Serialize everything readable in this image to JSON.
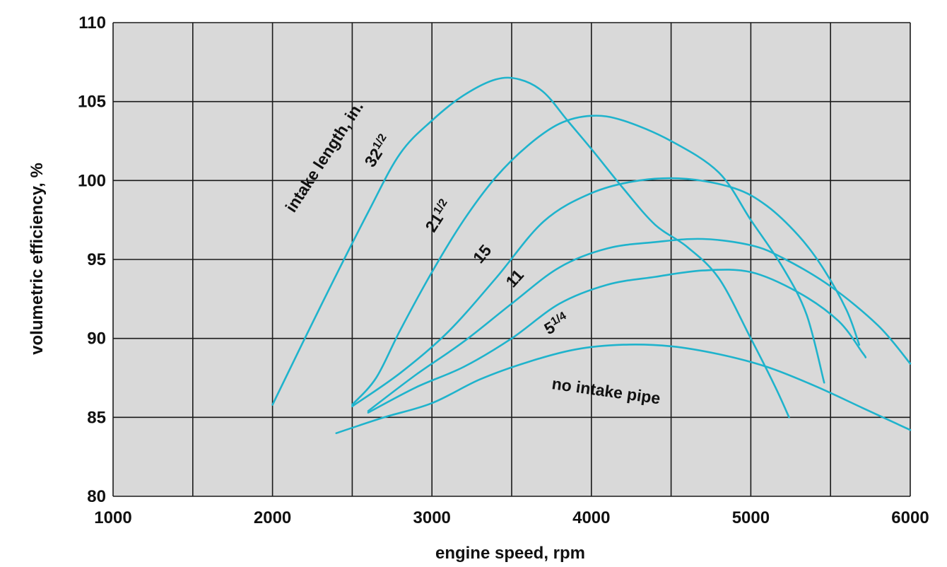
{
  "chart_data": {
    "type": "line",
    "title": "",
    "xlabel": "engine speed, rpm",
    "ylabel": "volumetric efficiency, %",
    "xlim": [
      1000,
      6000
    ],
    "ylim": [
      80,
      110
    ],
    "x_ticks": [
      1000,
      2000,
      3000,
      4000,
      5000,
      6000
    ],
    "y_ticks": [
      80,
      85,
      90,
      95,
      100,
      105,
      110
    ],
    "x_gridlines": [
      1000,
      1500,
      2000,
      2500,
      3000,
      3500,
      4000,
      4500,
      5000,
      5500,
      6000
    ],
    "y_gridlines": [
      80,
      85,
      90,
      95,
      100,
      105,
      110
    ],
    "grid": true,
    "plot_background": "#d9d9d9",
    "line_color": "#1fb3cc",
    "legend_title": "intake length, in.",
    "series": [
      {
        "name": "32½",
        "label_base": "32",
        "label_frac": "1/2",
        "points": [
          [
            2000,
            85.8
          ],
          [
            2300,
            92
          ],
          [
            2600,
            98
          ],
          [
            2800,
            101.7
          ],
          [
            3000,
            103.8
          ],
          [
            3200,
            105.4
          ],
          [
            3400,
            106.4
          ],
          [
            3550,
            106.4
          ],
          [
            3700,
            105.6
          ],
          [
            3850,
            103.8
          ],
          [
            4000,
            102
          ],
          [
            4200,
            99.5
          ],
          [
            4400,
            97.2
          ],
          [
            4600,
            95.8
          ],
          [
            4800,
            93.8
          ],
          [
            5000,
            90
          ],
          [
            5150,
            87
          ],
          [
            5240,
            85
          ]
        ]
      },
      {
        "name": "21½",
        "label_base": "21",
        "label_frac": "1/2",
        "points": [
          [
            2500,
            85.8
          ],
          [
            2650,
            87.5
          ],
          [
            2800,
            90.5
          ],
          [
            3000,
            94.2
          ],
          [
            3200,
            97.5
          ],
          [
            3400,
            100.2
          ],
          [
            3600,
            102.2
          ],
          [
            3800,
            103.6
          ],
          [
            4000,
            104.1
          ],
          [
            4200,
            103.8
          ],
          [
            4500,
            102.5
          ],
          [
            4800,
            100.5
          ],
          [
            5000,
            97.5
          ],
          [
            5200,
            94.5
          ],
          [
            5350,
            91.5
          ],
          [
            5460,
            87.2
          ]
        ]
      },
      {
        "name": "15",
        "label_base": "15",
        "label_frac": "",
        "points": [
          [
            2500,
            85.7
          ],
          [
            2800,
            87.8
          ],
          [
            3100,
            90.4
          ],
          [
            3400,
            93.8
          ],
          [
            3700,
            97.4
          ],
          [
            4000,
            99.2
          ],
          [
            4300,
            100
          ],
          [
            4600,
            100.1
          ],
          [
            4900,
            99.5
          ],
          [
            5100,
            98.4
          ],
          [
            5300,
            96.5
          ],
          [
            5450,
            94.5
          ],
          [
            5600,
            91.8
          ],
          [
            5680,
            89.6
          ]
        ]
      },
      {
        "name": "11",
        "label_base": "11",
        "label_frac": "",
        "points": [
          [
            2600,
            85.4
          ],
          [
            2900,
            87.7
          ],
          [
            3200,
            89.8
          ],
          [
            3500,
            92.2
          ],
          [
            3800,
            94.5
          ],
          [
            4100,
            95.7
          ],
          [
            4400,
            96.1
          ],
          [
            4700,
            96.3
          ],
          [
            5000,
            95.9
          ],
          [
            5200,
            95.1
          ],
          [
            5500,
            93.3
          ],
          [
            5800,
            90.8
          ],
          [
            6000,
            88.4
          ]
        ]
      },
      {
        "name": "5¼",
        "label_base": "5",
        "label_frac": "1/4",
        "points": [
          [
            2600,
            85.3
          ],
          [
            2900,
            86.9
          ],
          [
            3200,
            88.2
          ],
          [
            3500,
            90
          ],
          [
            3800,
            92.2
          ],
          [
            4100,
            93.4
          ],
          [
            4400,
            93.9
          ],
          [
            4700,
            94.3
          ],
          [
            5000,
            94.2
          ],
          [
            5300,
            92.9
          ],
          [
            5550,
            91.1
          ],
          [
            5700,
            89.1
          ],
          [
            5720,
            88.8
          ]
        ]
      },
      {
        "name": "no intake pipe",
        "label_base": "no intake pipe",
        "label_frac": "",
        "points": [
          [
            2400,
            84
          ],
          [
            2700,
            85
          ],
          [
            3000,
            85.9
          ],
          [
            3300,
            87.4
          ],
          [
            3600,
            88.5
          ],
          [
            3900,
            89.3
          ],
          [
            4200,
            89.6
          ],
          [
            4500,
            89.5
          ],
          [
            4800,
            89
          ],
          [
            5100,
            88.2
          ],
          [
            5400,
            87
          ],
          [
            5700,
            85.6
          ],
          [
            6000,
            84.2
          ]
        ]
      }
    ]
  }
}
